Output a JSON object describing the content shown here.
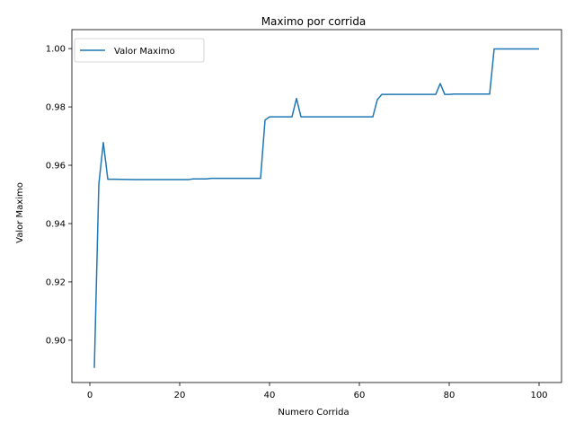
{
  "chart_data": {
    "type": "line",
    "title": "Maximo por corrida",
    "xlabel": "Numero Corrida",
    "ylabel": "Valor Maximo",
    "xlim": [
      -4,
      105
    ],
    "ylim": [
      0.8855,
      1.0065
    ],
    "xticks": [
      0,
      20,
      40,
      60,
      80,
      100
    ],
    "yticks": [
      0.9,
      0.92,
      0.94,
      0.96,
      0.98,
      1.0
    ],
    "xtick_labels": [
      "0",
      "20",
      "40",
      "60",
      "80",
      "100"
    ],
    "ytick_labels": [
      "0.90",
      "0.92",
      "0.94",
      "0.96",
      "0.98",
      "1.00"
    ],
    "grid": false,
    "legend_position": "top-left",
    "series": [
      {
        "name": "Valor Maximo",
        "color": "#1f77b4",
        "x": [
          1,
          2,
          3,
          4,
          5,
          10,
          15,
          20,
          22,
          23,
          24,
          25,
          26,
          27,
          30,
          35,
          38,
          39,
          40,
          41,
          42,
          43,
          44,
          45,
          46,
          47,
          48,
          50,
          55,
          60,
          63,
          64,
          65,
          66,
          70,
          75,
          77,
          78,
          79,
          80,
          81,
          85,
          89,
          90,
          91,
          95,
          100
        ],
        "y": [
          0.8905,
          0.9535,
          0.9678,
          0.9552,
          0.9552,
          0.9551,
          0.9551,
          0.9551,
          0.9551,
          0.9553,
          0.9553,
          0.9553,
          0.9553,
          0.9555,
          0.9555,
          0.9555,
          0.9555,
          0.9755,
          0.9766,
          0.9766,
          0.9766,
          0.9766,
          0.9766,
          0.9766,
          0.9829,
          0.9766,
          0.9766,
          0.9766,
          0.9766,
          0.9766,
          0.9766,
          0.9825,
          0.9843,
          0.9843,
          0.9843,
          0.9843,
          0.9843,
          0.988,
          0.9843,
          0.9843,
          0.9844,
          0.9844,
          0.9844,
          0.9999,
          0.9999,
          0.9999,
          0.9999
        ]
      }
    ]
  }
}
